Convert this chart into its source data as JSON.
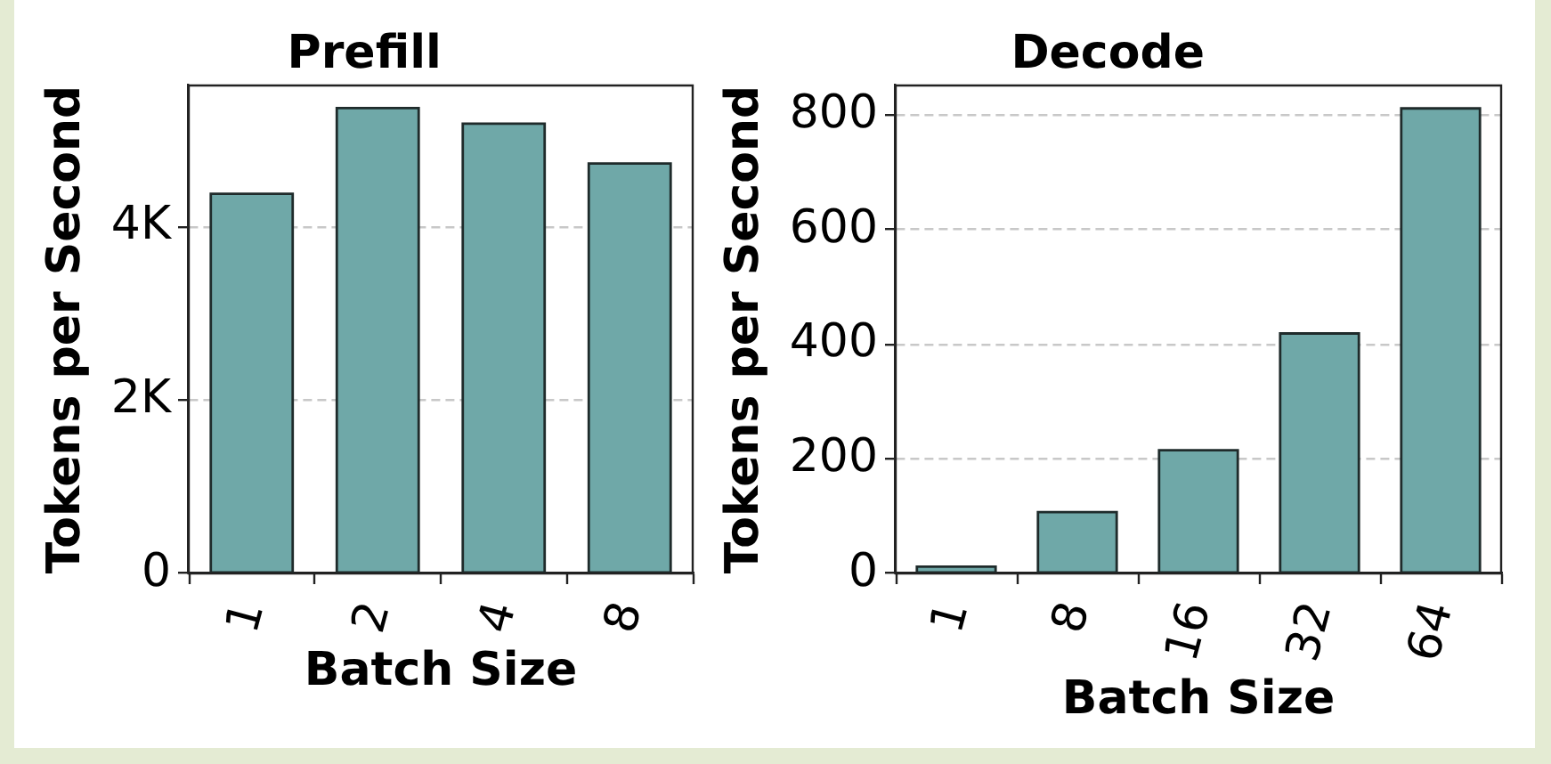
{
  "chart_data": [
    {
      "type": "bar",
      "title": "Prefill",
      "xlabel": "Batch Size",
      "ylabel": "Tokens per Second",
      "categories": [
        "1",
        "2",
        "4",
        "8"
      ],
      "values": [
        4380,
        5370,
        5190,
        4730
      ],
      "color": "#6fa8a8",
      "ylim": [
        0,
        5630
      ],
      "yticks": [
        0,
        {
          "value": 2000,
          "label": "2K"
        },
        {
          "value": 4000,
          "label": "4K"
        }
      ],
      "grid": "y"
    },
    {
      "type": "bar",
      "title": "Decode",
      "xlabel": "Batch Size",
      "ylabel": "Tokens per Second",
      "categories": [
        "1",
        "8",
        "16",
        "32",
        "64"
      ],
      "values": [
        12,
        107,
        215,
        419,
        812
      ],
      "color": "#6fa8a8",
      "ylim": [
        0,
        852
      ],
      "yticks": [
        0,
        200,
        400,
        600,
        800
      ],
      "grid": "y"
    }
  ]
}
